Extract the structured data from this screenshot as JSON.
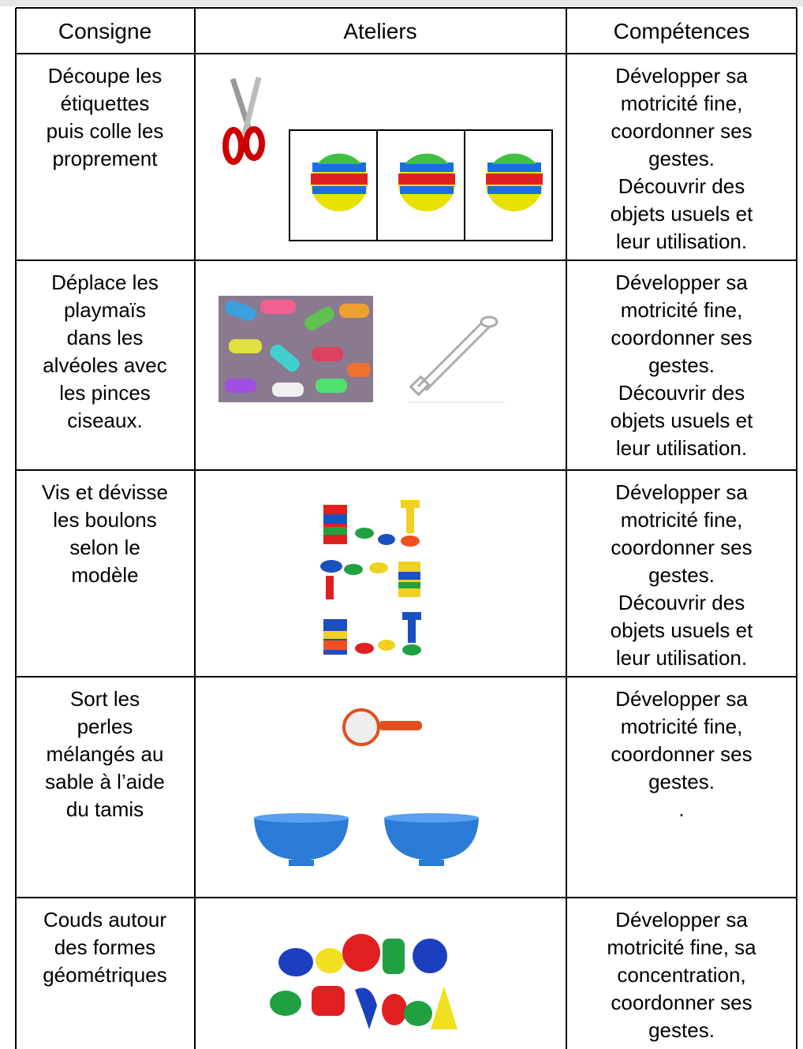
{
  "table": {
    "header": [
      "Consigne",
      "Ateliers",
      "Compétences"
    ],
    "rows": [
      {
        "consigne": [
          "Découpe les",
          "étiquettes",
          "puis colle les",
          "proprement"
        ],
        "competences": [
          "Développer sa",
          "motricité fine,",
          "coordonner ses",
          "gestes.",
          "Découvrir des",
          "objets usuels et",
          "leur utilisation."
        ]
      },
      {
        "consigne": [
          "Déplace les",
          "playmaïs",
          "dans les",
          "alvéoles avec",
          "les pinces",
          "ciseaux."
        ],
        "competences": [
          "Développer sa",
          "motricité fine,",
          "coordonner ses",
          "gestes.",
          "Découvrir des",
          "objets usuels et",
          "leur utilisation."
        ]
      },
      {
        "consigne": [
          "Vis et dévisse",
          "les boulons",
          "selon le",
          "modèle"
        ],
        "competences": [
          "Développer sa",
          "motricité fine,",
          "coordonner ses",
          "gestes.",
          "Découvrir des",
          "objets usuels et",
          "leur utilisation."
        ]
      },
      {
        "consigne": [
          "Sort les",
          "perles",
          "mélangés au",
          "sable à l’aide",
          "du tamis"
        ],
        "competences": [
          "Développer sa",
          "motricité fine,",
          "coordonner ses",
          "gestes.",
          "."
        ]
      },
      {
        "consigne": [
          "Couds autour",
          "des formes",
          "géométriques"
        ],
        "competences": [
          "Développer sa",
          "motricité fine, sa",
          "concentration,",
          "coordonner ses",
          "gestes."
        ]
      }
    ]
  }
}
